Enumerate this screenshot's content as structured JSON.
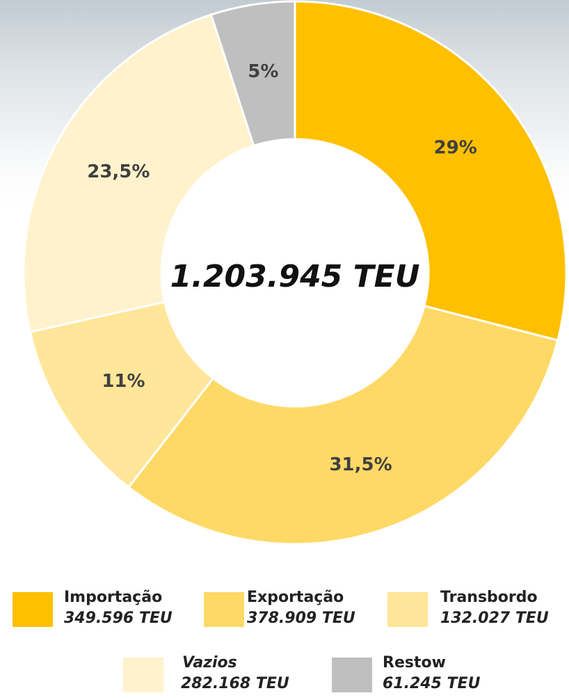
{
  "chart_data": {
    "type": "donut",
    "center_label": "1.203.945 TEU",
    "categories": [
      "Importação",
      "Exportação",
      "Transbordo",
      "Vazios",
      "Restow"
    ],
    "values": [
      29,
      31.5,
      11,
      23.5,
      5
    ],
    "value_labels": [
      "29%",
      "31,5%",
      "11%",
      "23,5%",
      "5%"
    ],
    "colors": [
      "#ffc000",
      "#ffd966",
      "#ffe699",
      "#fff2cc",
      "#bfbfbf"
    ],
    "teu_labels": [
      "349.596 TEU",
      "378.909 TEU",
      "132.027 TEU",
      "282.168 TEU",
      "61.245 TEU"
    ]
  }
}
